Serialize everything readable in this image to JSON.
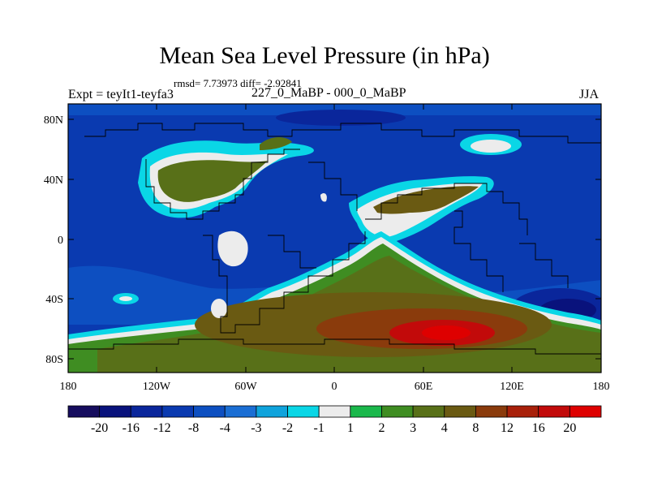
{
  "title": "Mean Sea Level Pressure (in hPa)",
  "stats": "rmsd= 7.73973 diff= -2.92841",
  "left_label": "Expt = teyIt1-teyfa3",
  "center_label": "227_0_MaBP - 000_0_MaBP",
  "right_label": "JJA",
  "lat_ticks": [
    "80N",
    "40N",
    "0",
    "40S",
    "80S"
  ],
  "lon_ticks": [
    "180",
    "120W",
    "60W",
    "0",
    "60E",
    "120E",
    "180"
  ],
  "colorbar": {
    "labels": [
      "-20",
      "-16",
      "-12",
      "-8",
      "-4",
      "-3",
      "-2",
      "-1",
      "1",
      "2",
      "3",
      "4",
      "8",
      "12",
      "16",
      "20"
    ],
    "colors": [
      "#160d5e",
      "#09127c",
      "#0a269b",
      "#0a3ab0",
      "#0d4fc1",
      "#1a6ed4",
      "#0fa3dc",
      "#0ad6e6",
      "#ececec",
      "#1ab84b",
      "#3f8d22",
      "#587018",
      "#6a5a12",
      "#8a3b0c",
      "#a8200a",
      "#c20a0a",
      "#de0000"
    ]
  }
}
